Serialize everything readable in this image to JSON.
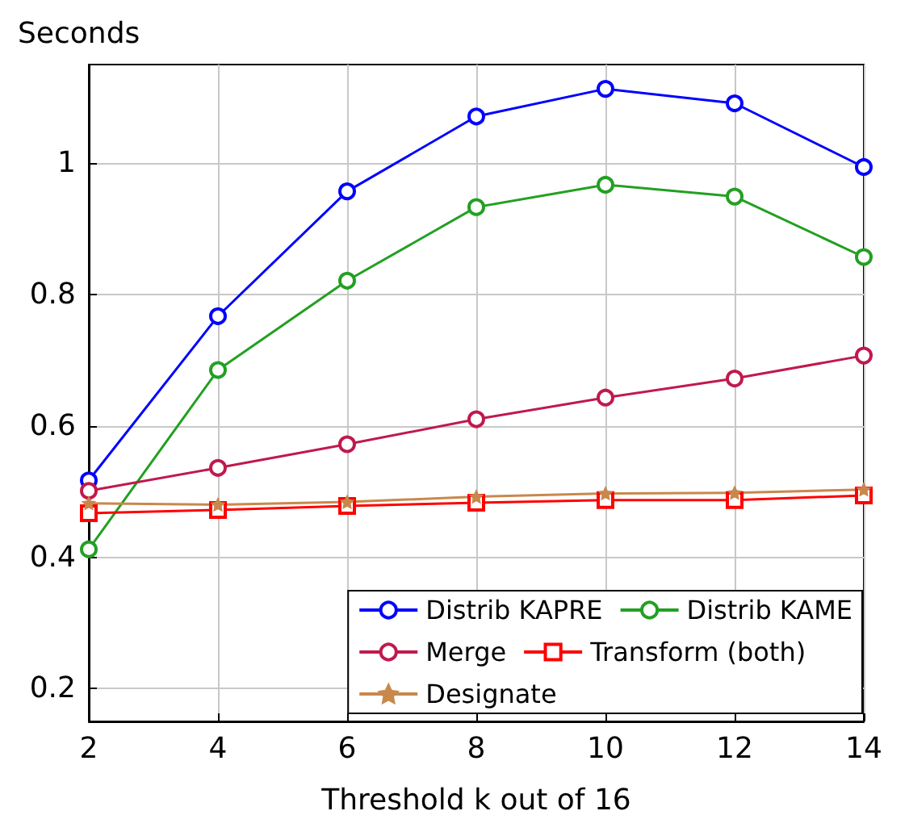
{
  "chart_data": {
    "type": "line",
    "ylabel": "Seconds",
    "xlabel": "Threshold k out of 16",
    "x": [
      2,
      4,
      6,
      8,
      10,
      12,
      14
    ],
    "xlim": [
      2,
      14
    ],
    "xticks": [
      2,
      4,
      6,
      8,
      10,
      12,
      14
    ],
    "ylim": [
      0.15,
      1.15
    ],
    "yticks": [
      0.2,
      0.4,
      0.6,
      0.8,
      1
    ],
    "grid": true,
    "legend": "bottom right",
    "line_style": "solid",
    "series": [
      {
        "name": "Distrib KAPRE",
        "color": "#0000ff",
        "marker": "circle",
        "values": [
          0.517,
          0.767,
          0.957,
          1.071,
          1.113,
          1.091,
          0.994
        ]
      },
      {
        "name": "Distrib KAME",
        "color": "#22a022",
        "marker": "circle",
        "values": [
          0.412,
          0.685,
          0.821,
          0.933,
          0.967,
          0.949,
          0.857
        ]
      },
      {
        "name": "Merge",
        "color": "#c0194d",
        "marker": "circle",
        "values": [
          0.501,
          0.536,
          0.572,
          0.61,
          0.643,
          0.672,
          0.707
        ]
      },
      {
        "name": "Transform (both)",
        "color": "#ff0000",
        "marker": "square",
        "values": [
          0.467,
          0.472,
          0.478,
          0.483,
          0.487,
          0.487,
          0.494
        ]
      },
      {
        "name": "Designate",
        "color": "#c8884c",
        "marker": "star",
        "values": [
          0.482,
          0.48,
          0.484,
          0.492,
          0.497,
          0.498,
          0.503
        ]
      }
    ]
  }
}
